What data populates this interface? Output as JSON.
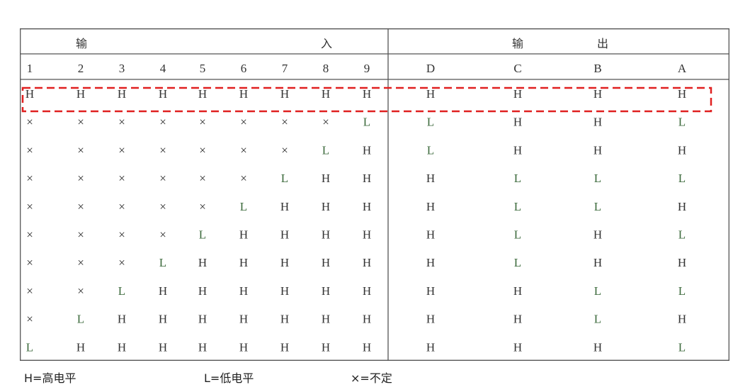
{
  "table": {
    "input_header_left": "输",
    "input_header_right": "入",
    "output_header_left": "输",
    "output_header_right": "出",
    "input_columns": [
      "1",
      "2",
      "3",
      "4",
      "5",
      "6",
      "7",
      "8",
      "9"
    ],
    "output_columns": [
      "D",
      "C",
      "B",
      "A"
    ],
    "rows": [
      {
        "inputs": [
          "H",
          "H",
          "H",
          "H",
          "H",
          "H",
          "H",
          "H",
          "H"
        ],
        "outputs": [
          "H",
          "H",
          "H",
          "H"
        ]
      },
      {
        "inputs": [
          "×",
          "×",
          "×",
          "×",
          "×",
          "×",
          "×",
          "×",
          "L"
        ],
        "outputs": [
          "L",
          "H",
          "H",
          "L"
        ]
      },
      {
        "inputs": [
          "×",
          "×",
          "×",
          "×",
          "×",
          "×",
          "×",
          "L",
          "H"
        ],
        "outputs": [
          "L",
          "H",
          "H",
          "H"
        ]
      },
      {
        "inputs": [
          "×",
          "×",
          "×",
          "×",
          "×",
          "×",
          "L",
          "H",
          "H"
        ],
        "outputs": [
          "H",
          "L",
          "L",
          "L"
        ]
      },
      {
        "inputs": [
          "×",
          "×",
          "×",
          "×",
          "×",
          "L",
          "H",
          "H",
          "H"
        ],
        "outputs": [
          "H",
          "L",
          "L",
          "H"
        ]
      },
      {
        "inputs": [
          "×",
          "×",
          "×",
          "×",
          "L",
          "H",
          "H",
          "H",
          "H"
        ],
        "outputs": [
          "H",
          "L",
          "H",
          "L"
        ]
      },
      {
        "inputs": [
          "×",
          "×",
          "×",
          "L",
          "H",
          "H",
          "H",
          "H",
          "H"
        ],
        "outputs": [
          "H",
          "L",
          "H",
          "H"
        ]
      },
      {
        "inputs": [
          "×",
          "×",
          "L",
          "H",
          "H",
          "H",
          "H",
          "H",
          "H"
        ],
        "outputs": [
          "H",
          "H",
          "L",
          "L"
        ]
      },
      {
        "inputs": [
          "×",
          "L",
          "H",
          "H",
          "H",
          "H",
          "H",
          "H",
          "H"
        ],
        "outputs": [
          "H",
          "H",
          "L",
          "H"
        ]
      },
      {
        "inputs": [
          "L",
          "H",
          "H",
          "H",
          "H",
          "H",
          "H",
          "H",
          "H"
        ],
        "outputs": [
          "H",
          "H",
          "H",
          "L"
        ]
      }
    ]
  },
  "legend": {
    "high": "H=高电平",
    "low": "L=低电平",
    "undefined": "×=不定"
  },
  "colors": {
    "text": "#333333",
    "low_text": "#3c6a3c",
    "border": "#555555",
    "highlight": "#e02020"
  }
}
